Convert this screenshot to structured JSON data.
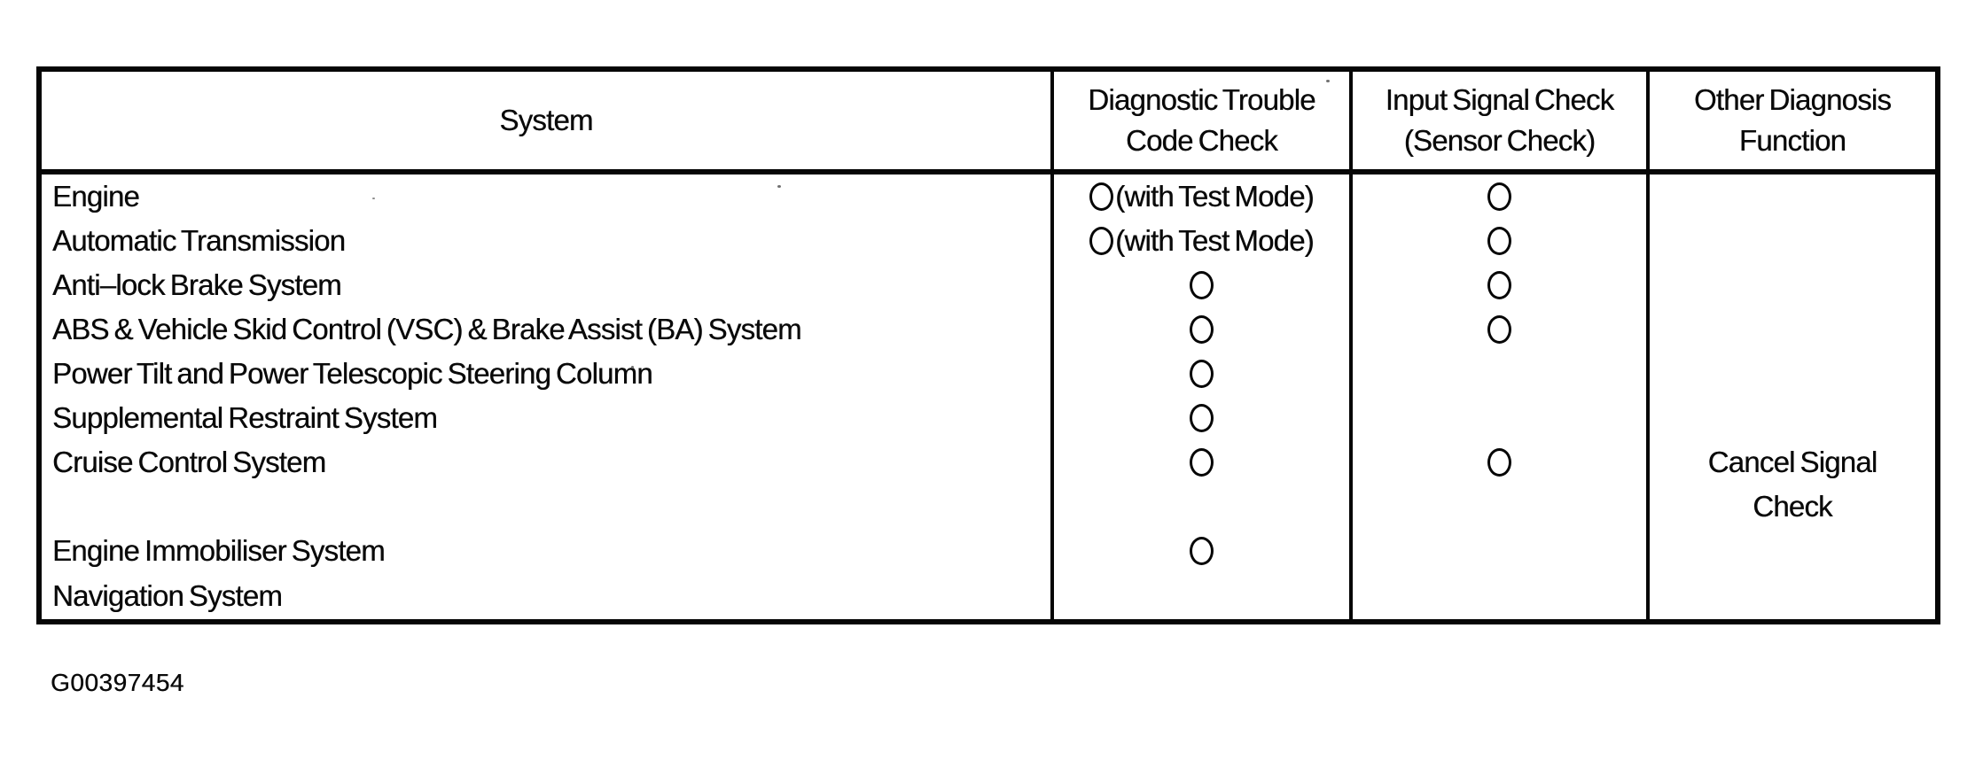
{
  "document": {
    "background": "#ffffff",
    "ink": "#060606",
    "figure_code": "G00397454"
  },
  "table": {
    "columns": [
      {
        "id": "system",
        "label": "System"
      },
      {
        "id": "dtc",
        "label_line1": "Diagnostic Trouble",
        "label_line2": "Code Check"
      },
      {
        "id": "input",
        "label_line1": "Input Signal Check",
        "label_line2": "(Sensor Check)"
      },
      {
        "id": "other",
        "label_line1": "Other Diagnosis",
        "label_line2": "Function"
      }
    ],
    "circle_symbol": "○",
    "rows": [
      {
        "system": "Engine",
        "dtc_mark": "circle",
        "dtc_label": "(with Test Mode)",
        "input_mark": "circle",
        "other": ""
      },
      {
        "system": "Automatic Transmission",
        "dtc_mark": "circle",
        "dtc_label": "(with Test Mode)",
        "input_mark": "circle",
        "other": ""
      },
      {
        "system": "Anti–lock Brake System",
        "dtc_mark": "circle",
        "dtc_label": "",
        "input_mark": "circle",
        "other": ""
      },
      {
        "system": "ABS & Vehicle Skid Control (VSC) & Brake Assist (BA) System",
        "dtc_mark": "circle",
        "dtc_label": "",
        "input_mark": "circle",
        "other": ""
      },
      {
        "system": "Power Tilt and Power Telescopic Steering Column",
        "dtc_mark": "circle",
        "dtc_label": "",
        "input_mark": "none",
        "other": ""
      },
      {
        "system": "Supplemental Restraint System",
        "dtc_mark": "circle",
        "dtc_label": "",
        "input_mark": "none",
        "other": ""
      },
      {
        "system": "Cruise Control System",
        "dtc_mark": "circle",
        "dtc_label": "",
        "input_mark": "circle",
        "other_line1": "Cancel Signal",
        "other_line2": "Check"
      },
      {
        "system": "Engine Immobiliser System",
        "dtc_mark": "circle",
        "dtc_label": "",
        "input_mark": "none",
        "other": ""
      },
      {
        "system": "Navigation System",
        "dtc_mark": "none",
        "dtc_label": "",
        "input_mark": "none",
        "other": ""
      }
    ]
  }
}
